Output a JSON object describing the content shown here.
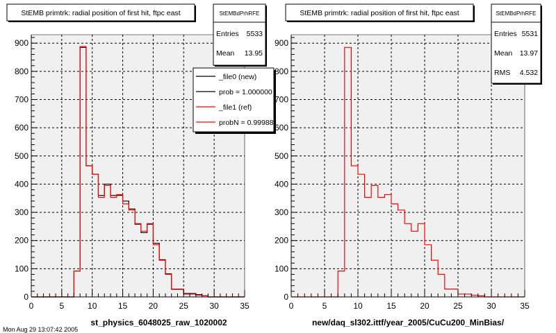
{
  "colors": {
    "canvas": "#ffffff",
    "frame_fill": "#f0f0f0",
    "hist_new": "#000000",
    "hist_ref": "#ff0000",
    "grid": "#000000"
  },
  "footer": {
    "timestamp": "Mon Aug 29 13:07:42 2005"
  },
  "chart_data": [
    {
      "type": "line",
      "step": true,
      "title": "StEMB primtrk: radial position of first hit, ftpc east",
      "xlabel": "st_physics_6048025_raw_1020002",
      "ylabel": "",
      "xlim": [
        0,
        35
      ],
      "ylim": [
        0,
        930
      ],
      "x_ticks": [
        "0",
        "5",
        "10",
        "15",
        "20",
        "25",
        "30",
        "35"
      ],
      "y_ticks": [
        "0",
        "100",
        "200",
        "300",
        "400",
        "500",
        "600",
        "700",
        "800",
        "900"
      ],
      "grid": true,
      "stats": {
        "name": "StEMBdPrhRFE",
        "rows": [
          {
            "label": "Entries",
            "value": "5533"
          },
          {
            "label": "Mean",
            "value": "13.95"
          }
        ]
      },
      "legend": [
        {
          "label": "_file0 (new)",
          "color": "#000000"
        },
        {
          "label": "prob = 1.000000",
          "color": "#000000"
        },
        {
          "label": "_file1 (ref)",
          "color": "#ff0000"
        },
        {
          "label": "probN = 0.99988",
          "color": "#ff0000"
        }
      ],
      "bin_width": 1,
      "series": [
        {
          "name": "_file0 (new)",
          "color": "#000000",
          "x": [
            7,
            8,
            9,
            10,
            11,
            12,
            13,
            14,
            15,
            16,
            17,
            18,
            19,
            20,
            21,
            22,
            23,
            24,
            25,
            26,
            27,
            28,
            29
          ],
          "values": [
            92,
            885,
            465,
            435,
            360,
            400,
            360,
            360,
            340,
            312,
            258,
            228,
            258,
            190,
            132,
            82,
            27,
            27,
            12,
            12,
            8,
            4,
            0
          ]
        },
        {
          "name": "_file1 (ref)",
          "color": "#ff0000",
          "x": [
            7,
            8,
            9,
            10,
            11,
            12,
            13,
            14,
            15,
            16,
            17,
            18,
            19,
            20,
            21,
            22,
            23,
            24,
            25,
            26,
            27,
            28,
            29
          ],
          "values": [
            92,
            888,
            465,
            435,
            353,
            395,
            353,
            363,
            330,
            308,
            260,
            233,
            260,
            185,
            130,
            80,
            28,
            28,
            10,
            10,
            6,
            4,
            0
          ]
        }
      ]
    },
    {
      "type": "line",
      "step": true,
      "title": "StEMB primtrk: radial position of first hit, ftpc east",
      "xlabel": "new/daq_sl302.ittf/year_2005/CuCu200_MinBias/",
      "ylabel": "",
      "xlim": [
        0,
        35
      ],
      "ylim": [
        0,
        930
      ],
      "x_ticks": [
        "0",
        "5",
        "10",
        "15",
        "20",
        "25",
        "30",
        "35"
      ],
      "y_ticks": [
        "0",
        "100",
        "200",
        "300",
        "400",
        "500",
        "600",
        "700",
        "800",
        "900"
      ],
      "grid": true,
      "stats": {
        "name": "StEMBdPrhRFE",
        "rows": [
          {
            "label": "Entries",
            "value": "5531"
          },
          {
            "label": "Mean",
            "value": "13.97"
          },
          {
            "label": "RMS",
            "value": "4.532"
          }
        ]
      },
      "legend": [],
      "bin_width": 1,
      "series": [
        {
          "name": "",
          "color": "#ff0000",
          "x": [
            7,
            8,
            9,
            10,
            11,
            12,
            13,
            14,
            15,
            16,
            17,
            18,
            19,
            20,
            21,
            22,
            23,
            24,
            25,
            26,
            27,
            28,
            29
          ],
          "values": [
            92,
            885,
            465,
            435,
            353,
            395,
            353,
            363,
            330,
            308,
            260,
            233,
            260,
            185,
            130,
            80,
            28,
            28,
            10,
            10,
            6,
            4,
            0
          ]
        }
      ]
    }
  ]
}
